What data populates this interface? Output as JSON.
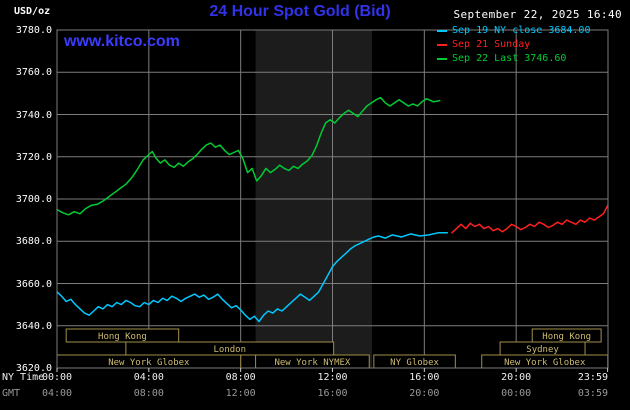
{
  "header": {
    "units_label": "USD/oz",
    "title": "24 Hour Spot Gold (Bid)",
    "datetime": "September 22, 2025 16:40",
    "site_link": "www.kitco.com"
  },
  "colors": {
    "title_blue": "#3232e8",
    "link_blue": "#3c3cff",
    "grid": "#7d7d7d",
    "axis_text": "#ffffff",
    "gmt_text": "#9a9a9a",
    "band": "#1c1c1c",
    "session_border": "#a08f4a",
    "session_text": "#cdbb72",
    "tick": "#cfcfcf"
  },
  "legend": [
    {
      "label": "Sep 19 NY close 3684.00",
      "color": "#00c8ff"
    },
    {
      "label": "Sep 21 Sunday",
      "color": "#ff2020"
    },
    {
      "label": "Sep 22 Last 3746.60",
      "color": "#00cc33"
    }
  ],
  "axes": {
    "ny_label": "NY Time",
    "gmt_label": "GMT",
    "y_ticks": [
      {
        "value": 3780,
        "label": "3780.0"
      },
      {
        "value": 3760,
        "label": "3760.0"
      },
      {
        "value": 3740,
        "label": "3740.0"
      },
      {
        "value": 3720,
        "label": "3720.0"
      },
      {
        "value": 3700,
        "label": "3700.0"
      },
      {
        "value": 3680,
        "label": "3680.0"
      },
      {
        "value": 3660,
        "label": "3660.0"
      },
      {
        "value": 3640,
        "label": "3640.0"
      },
      {
        "value": 3620,
        "label": "3620.0"
      }
    ],
    "x_ticks": [
      {
        "hour": 0,
        "ny": "00:00",
        "gmt": "04:00"
      },
      {
        "hour": 4,
        "ny": "04:00",
        "gmt": "08:00"
      },
      {
        "hour": 8,
        "ny": "08:00",
        "gmt": "12:00"
      },
      {
        "hour": 12,
        "ny": "12:00",
        "gmt": "16:00"
      },
      {
        "hour": 16,
        "ny": "16:00",
        "gmt": "20:00"
      },
      {
        "hour": 20,
        "ny": "20:00",
        "gmt": "00:00"
      },
      {
        "hour": 23.983,
        "ny": "23:59",
        "gmt": "03:59"
      }
    ]
  },
  "shading": {
    "start": 8.65,
    "end": 13.72,
    "color": "#1c1c1c"
  },
  "sessions": {
    "rows": [
      [
        {
          "label": "Hong Kong",
          "start": 0.4,
          "end": 5.3
        },
        {
          "label": "Hong Kong",
          "start": 20.7,
          "end": 23.7
        }
      ],
      [
        {
          "label": "London",
          "start": 3.0,
          "end": 12.05
        },
        {
          "label": "Sydney",
          "start": 19.3,
          "end": 23.0
        }
      ],
      [
        {
          "label": "New York Globex",
          "start": 0.0,
          "end": 8.0
        },
        {
          "label": "New York NYMEX",
          "start": 8.65,
          "end": 13.6
        },
        {
          "label": "NY Globex",
          "start": 13.8,
          "end": 17.35
        },
        {
          "label": "New York Globex",
          "start": 18.5,
          "end": 23.99
        }
      ]
    ]
  },
  "chart_data": {
    "type": "line",
    "title": "24 Hour Spot Gold (Bid)",
    "ylabel": "USD/oz",
    "ylim": [
      3620,
      3780
    ],
    "y_tick_step": 20,
    "x_unit": "hours_ny_time",
    "xlim": [
      0,
      24
    ],
    "grid": true,
    "legend_position": "top-right",
    "series": [
      {
        "name": "Sep 19 NY close 3684.00",
        "color": "#00c8ff",
        "last_value": 3684.0,
        "points": [
          [
            0,
            3656
          ],
          [
            0.2,
            3654
          ],
          [
            0.4,
            3651.5
          ],
          [
            0.6,
            3652.5
          ],
          [
            0.8,
            3650
          ],
          [
            1,
            3648
          ],
          [
            1.2,
            3646
          ],
          [
            1.4,
            3645
          ],
          [
            1.6,
            3647
          ],
          [
            1.8,
            3649
          ],
          [
            2,
            3648
          ],
          [
            2.2,
            3650
          ],
          [
            2.4,
            3649
          ],
          [
            2.6,
            3651
          ],
          [
            2.8,
            3650
          ],
          [
            3,
            3652
          ],
          [
            3.2,
            3651
          ],
          [
            3.4,
            3649.5
          ],
          [
            3.6,
            3649
          ],
          [
            3.8,
            3651
          ],
          [
            4,
            3650
          ],
          [
            4.2,
            3652
          ],
          [
            4.4,
            3651
          ],
          [
            4.6,
            3653
          ],
          [
            4.8,
            3652
          ],
          [
            5,
            3654
          ],
          [
            5.2,
            3653
          ],
          [
            5.4,
            3651.5
          ],
          [
            5.6,
            3653
          ],
          [
            5.8,
            3654
          ],
          [
            6,
            3655
          ],
          [
            6.2,
            3653.5
          ],
          [
            6.4,
            3654.5
          ],
          [
            6.6,
            3652.5
          ],
          [
            6.8,
            3653.5
          ],
          [
            7,
            3655
          ],
          [
            7.2,
            3652.5
          ],
          [
            7.4,
            3650.5
          ],
          [
            7.6,
            3648.5
          ],
          [
            7.8,
            3649.5
          ],
          [
            8,
            3647.5
          ],
          [
            8.2,
            3645
          ],
          [
            8.4,
            3643
          ],
          [
            8.6,
            3644.5
          ],
          [
            8.8,
            3642
          ],
          [
            9,
            3645
          ],
          [
            9.2,
            3647
          ],
          [
            9.4,
            3646
          ],
          [
            9.6,
            3648
          ],
          [
            9.8,
            3647
          ],
          [
            10,
            3649
          ],
          [
            10.2,
            3651
          ],
          [
            10.4,
            3653
          ],
          [
            10.6,
            3655
          ],
          [
            10.8,
            3653.5
          ],
          [
            11,
            3652
          ],
          [
            11.2,
            3654
          ],
          [
            11.4,
            3656
          ],
          [
            11.6,
            3660
          ],
          [
            11.8,
            3664
          ],
          [
            12,
            3668
          ],
          [
            12.2,
            3670.5
          ],
          [
            12.4,
            3672.5
          ],
          [
            12.6,
            3674.5
          ],
          [
            12.8,
            3676.5
          ],
          [
            13,
            3678
          ],
          [
            13.2,
            3679
          ],
          [
            13.4,
            3680
          ],
          [
            13.6,
            3681
          ],
          [
            13.8,
            3682
          ],
          [
            14,
            3682.5
          ],
          [
            14.3,
            3681.5
          ],
          [
            14.6,
            3683
          ],
          [
            15,
            3682
          ],
          [
            15.4,
            3683.5
          ],
          [
            15.8,
            3682.5
          ],
          [
            16.2,
            3683
          ],
          [
            16.6,
            3684
          ],
          [
            17,
            3684
          ]
        ]
      },
      {
        "name": "Sep 21 Sunday",
        "color": "#ff2020",
        "points": [
          [
            17.2,
            3684
          ],
          [
            17.4,
            3686
          ],
          [
            17.6,
            3688
          ],
          [
            17.8,
            3686
          ],
          [
            18,
            3688.5
          ],
          [
            18.2,
            3687
          ],
          [
            18.4,
            3688
          ],
          [
            18.6,
            3686
          ],
          [
            18.8,
            3687
          ],
          [
            19,
            3685
          ],
          [
            19.2,
            3686
          ],
          [
            19.4,
            3684.5
          ],
          [
            19.6,
            3686
          ],
          [
            19.8,
            3688
          ],
          [
            20,
            3687
          ],
          [
            20.2,
            3685.5
          ],
          [
            20.4,
            3686.5
          ],
          [
            20.6,
            3688
          ],
          [
            20.8,
            3687
          ],
          [
            21,
            3689
          ],
          [
            21.2,
            3688
          ],
          [
            21.4,
            3686.5
          ],
          [
            21.6,
            3687.5
          ],
          [
            21.8,
            3689
          ],
          [
            22,
            3688
          ],
          [
            22.2,
            3690
          ],
          [
            22.4,
            3689
          ],
          [
            22.6,
            3688
          ],
          [
            22.8,
            3690
          ],
          [
            23,
            3689
          ],
          [
            23.2,
            3691
          ],
          [
            23.4,
            3690
          ],
          [
            23.6,
            3691.5
          ],
          [
            23.8,
            3693
          ],
          [
            23.99,
            3697
          ]
        ]
      },
      {
        "name": "Sep 22 Last 3746.60",
        "color": "#00cc33",
        "last_value": 3746.6,
        "points": [
          [
            0,
            3695
          ],
          [
            0.25,
            3693.5
          ],
          [
            0.5,
            3692.5
          ],
          [
            0.75,
            3694
          ],
          [
            1,
            3693
          ],
          [
            1.25,
            3695.5
          ],
          [
            1.5,
            3697
          ],
          [
            1.75,
            3697.5
          ],
          [
            2,
            3699
          ],
          [
            2.25,
            3701
          ],
          [
            2.5,
            3703
          ],
          [
            2.75,
            3705
          ],
          [
            3,
            3707
          ],
          [
            3.25,
            3710
          ],
          [
            3.5,
            3714
          ],
          [
            3.75,
            3718.5
          ],
          [
            4,
            3721
          ],
          [
            4.15,
            3722.5
          ],
          [
            4.3,
            3719.5
          ],
          [
            4.5,
            3717
          ],
          [
            4.7,
            3718.5
          ],
          [
            4.9,
            3716
          ],
          [
            5.1,
            3715
          ],
          [
            5.3,
            3717
          ],
          [
            5.5,
            3715.5
          ],
          [
            5.7,
            3717.5
          ],
          [
            5.9,
            3719
          ],
          [
            6.1,
            3721
          ],
          [
            6.3,
            3723.5
          ],
          [
            6.5,
            3725.5
          ],
          [
            6.7,
            3726.5
          ],
          [
            6.9,
            3724.5
          ],
          [
            7.1,
            3725.5
          ],
          [
            7.3,
            3723
          ],
          [
            7.5,
            3721
          ],
          [
            7.7,
            3722
          ],
          [
            7.9,
            3723
          ],
          [
            8.1,
            3719
          ],
          [
            8.3,
            3712.5
          ],
          [
            8.5,
            3714.5
          ],
          [
            8.7,
            3708.5
          ],
          [
            8.9,
            3711
          ],
          [
            9.1,
            3714.5
          ],
          [
            9.3,
            3712.5
          ],
          [
            9.5,
            3714
          ],
          [
            9.7,
            3716
          ],
          [
            9.9,
            3714.5
          ],
          [
            10.1,
            3713.5
          ],
          [
            10.3,
            3715.5
          ],
          [
            10.5,
            3714.5
          ],
          [
            10.7,
            3716.5
          ],
          [
            10.9,
            3718
          ],
          [
            11.1,
            3720.5
          ],
          [
            11.3,
            3725
          ],
          [
            11.5,
            3731
          ],
          [
            11.7,
            3736
          ],
          [
            11.9,
            3737.5
          ],
          [
            12.1,
            3736
          ],
          [
            12.3,
            3738.5
          ],
          [
            12.5,
            3740.5
          ],
          [
            12.7,
            3742
          ],
          [
            12.9,
            3740.5
          ],
          [
            13.1,
            3739
          ],
          [
            13.3,
            3741.5
          ],
          [
            13.5,
            3744
          ],
          [
            13.7,
            3745.5
          ],
          [
            13.9,
            3747
          ],
          [
            14.1,
            3748
          ],
          [
            14.3,
            3745.5
          ],
          [
            14.5,
            3744
          ],
          [
            14.7,
            3745.5
          ],
          [
            14.9,
            3747
          ],
          [
            15.1,
            3745.5
          ],
          [
            15.3,
            3744
          ],
          [
            15.5,
            3745
          ],
          [
            15.7,
            3744
          ],
          [
            15.9,
            3746
          ],
          [
            16.1,
            3747.5
          ],
          [
            16.4,
            3746
          ],
          [
            16.67,
            3746.6
          ]
        ]
      }
    ]
  }
}
